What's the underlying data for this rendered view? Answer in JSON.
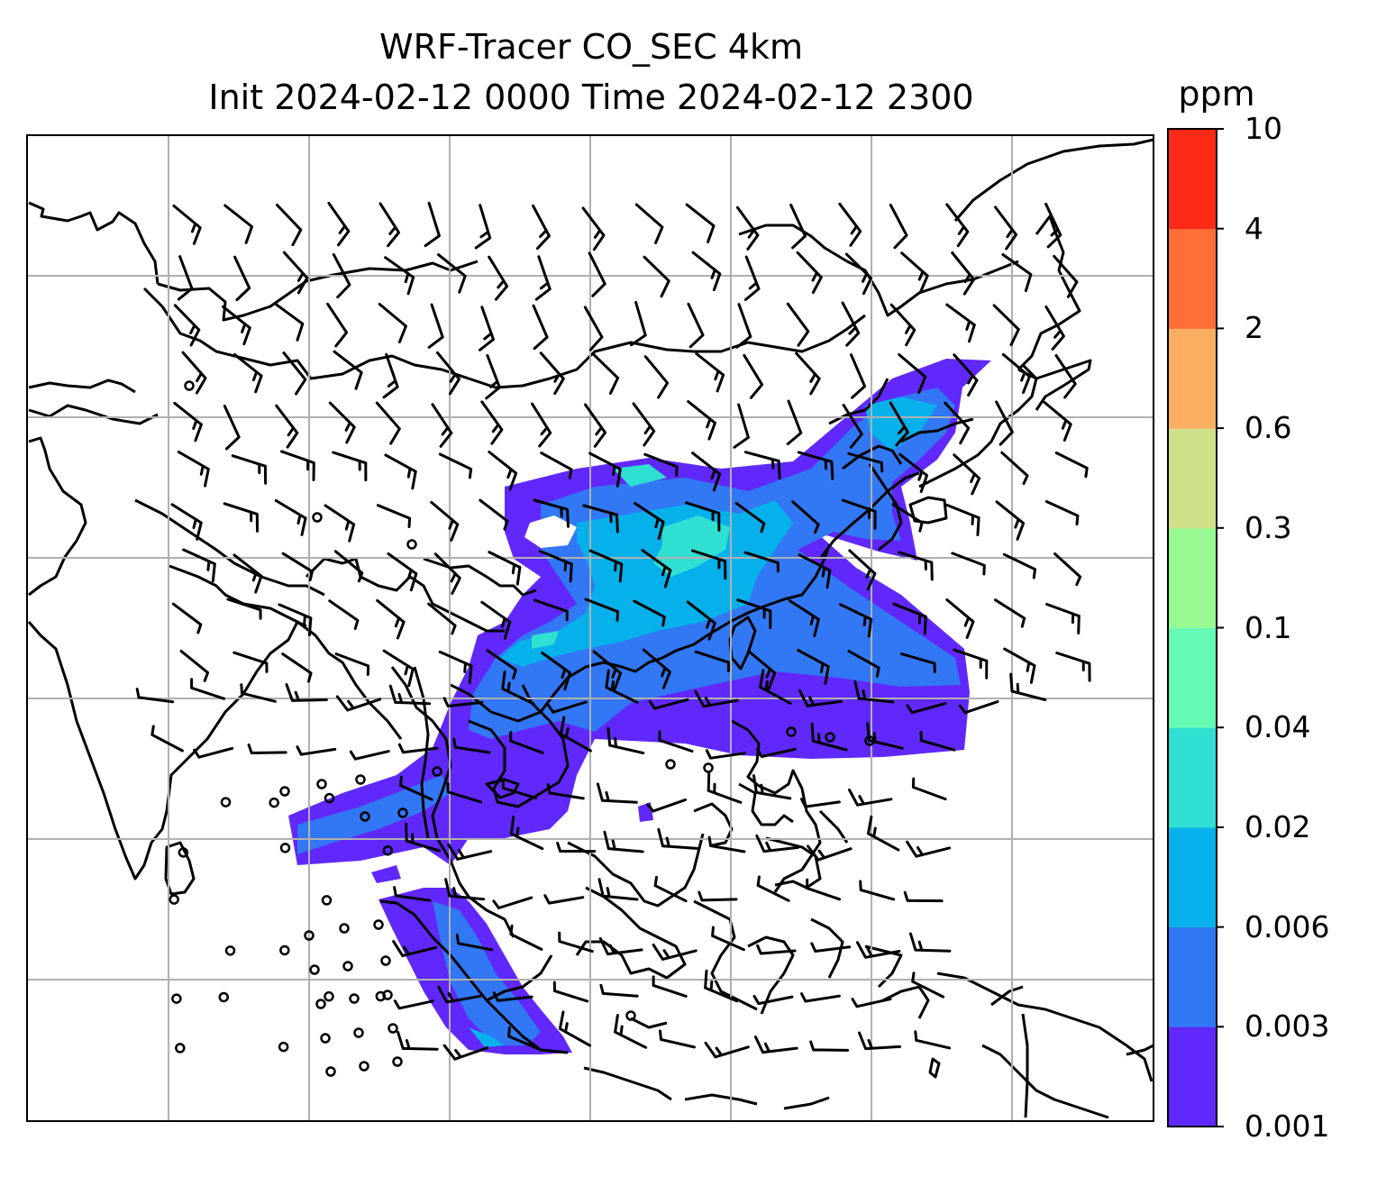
{
  "title": {
    "line1": "WRF-Tracer CO_SEC 4km",
    "line2": "Init 2024-02-12 0000 Time 2024-02-12 2300"
  },
  "colorbar": {
    "unit": "ppm",
    "levels": [
      "0.001",
      "0.003",
      "0.006",
      "0.02",
      "0.04",
      "0.1",
      "0.3",
      "0.6",
      "2",
      "4",
      "10"
    ],
    "colors": [
      "#6128fb",
      "#3278f5",
      "#06b0eb",
      "#2fdfd2",
      "#66fbb5",
      "#98f993",
      "#cfe08a",
      "#fcae62",
      "#ff7039",
      "#fc2a17"
    ]
  },
  "map": {
    "coastline_color": "#000000",
    "gridline_color": "#b0b0b0",
    "wind_barb_color": "#000000"
  }
}
